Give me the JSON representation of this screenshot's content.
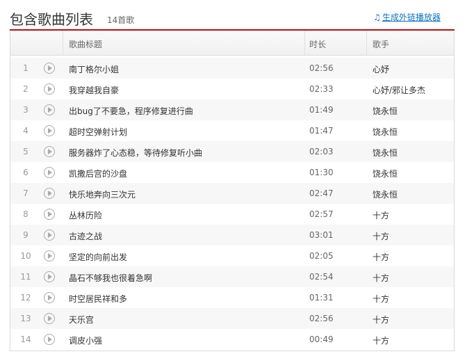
{
  "header": {
    "title": "包含歌曲列表",
    "count": "14首歌",
    "link_label": "生成外链播放器",
    "link_icon": "music-note-icon",
    "accent": "#c20c0c"
  },
  "columns": {
    "title": "歌曲标题",
    "duration": "时长",
    "singer": "歌手"
  },
  "songs": [
    {
      "index": "1",
      "title": "南丁格尔小姐",
      "duration": "02:56",
      "singer": "心妤"
    },
    {
      "index": "2",
      "title": "我穿越我自豪",
      "duration": "02:33",
      "singer": "心妤/邪让多杰"
    },
    {
      "index": "3",
      "title": "出bug了不要急，程序修复进行曲",
      "duration": "01:49",
      "singer": "饶永恒"
    },
    {
      "index": "4",
      "title": "超时空弹射计划",
      "duration": "01:47",
      "singer": "饶永恒"
    },
    {
      "index": "5",
      "title": "服务器炸了心态稳，等待修复听小曲",
      "duration": "02:03",
      "singer": "饶永恒"
    },
    {
      "index": "6",
      "title": "凯撒后宫的沙盘",
      "duration": "01:30",
      "singer": "饶永恒"
    },
    {
      "index": "7",
      "title": "快乐地奔向三次元",
      "duration": "02:47",
      "singer": "饶永恒"
    },
    {
      "index": "8",
      "title": "丛林历险",
      "duration": "02:57",
      "singer": "十方"
    },
    {
      "index": "9",
      "title": "古迹之战",
      "duration": "03:01",
      "singer": "十方"
    },
    {
      "index": "10",
      "title": "坚定的向前出发",
      "duration": "02:05",
      "singer": "十方"
    },
    {
      "index": "11",
      "title": "晶石不够我也很着急啊",
      "duration": "02:54",
      "singer": "十方"
    },
    {
      "index": "12",
      "title": "时空居民祥和多",
      "duration": "01:31",
      "singer": "十方"
    },
    {
      "index": "13",
      "title": "天乐宫",
      "duration": "02:56",
      "singer": "十方"
    },
    {
      "index": "14",
      "title": "调皮小强",
      "duration": "00:49",
      "singer": "十方"
    }
  ]
}
